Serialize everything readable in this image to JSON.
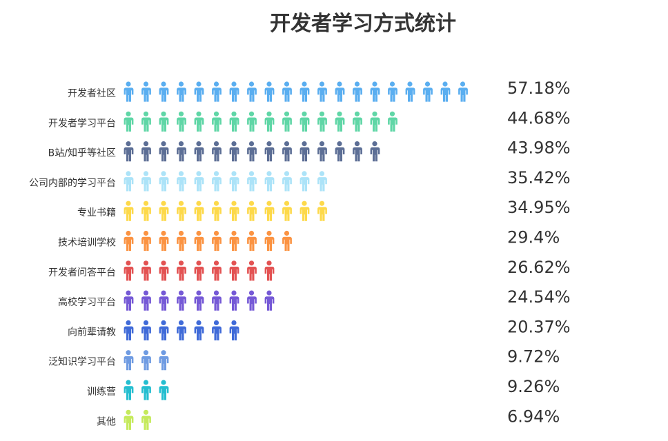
{
  "chart_data": {
    "type": "bar",
    "title": "开发者学习方式统计",
    "categories": [
      "开发者社区",
      "开发者学习平台",
      "B站/知乎等社区",
      "公司内部的学习平台",
      "专业书籍",
      "技术培训学校",
      "开发者问答平台",
      "高校学习平台",
      "向前辈请教",
      "泛知识学习平台",
      "训练营",
      "其他"
    ],
    "values": [
      57.18,
      44.68,
      43.98,
      35.42,
      34.95,
      29.4,
      26.62,
      24.54,
      20.37,
      9.72,
      9.26,
      6.94
    ],
    "value_labels": [
      "57.18%",
      "44.68%",
      "43.98%",
      "35.42%",
      "34.95%",
      "29.4%",
      "26.62%",
      "24.54%",
      "20.37%",
      "9.72%",
      "9.26%",
      "6.94%"
    ],
    "icon_counts": [
      20,
      16,
      15,
      12,
      12,
      10,
      9,
      9,
      7,
      3,
      3,
      2
    ],
    "colors": [
      "#5aaef0",
      "#5fd6a6",
      "#5c6e95",
      "#ace3f8",
      "#fdd94a",
      "#fb9342",
      "#e35252",
      "#7559d6",
      "#3f6ad8",
      "#6f9be2",
      "#24bed0",
      "#c5ea5b"
    ],
    "icon": "person-icon"
  }
}
